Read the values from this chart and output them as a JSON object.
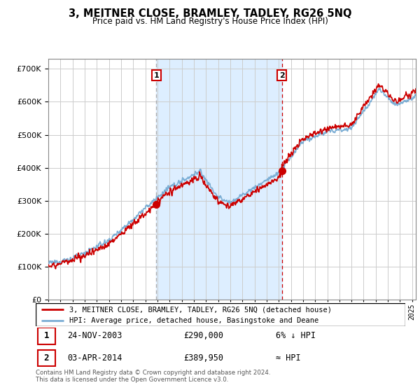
{
  "title": "3, MEITNER CLOSE, BRAMLEY, TADLEY, RG26 5NQ",
  "subtitle": "Price paid vs. HM Land Registry's House Price Index (HPI)",
  "ylim": [
    0,
    730000
  ],
  "xlim_start": 1995.0,
  "xlim_end": 2025.3,
  "legend_line1": "3, MEITNER CLOSE, BRAMLEY, TADLEY, RG26 5NQ (detached house)",
  "legend_line2": "HPI: Average price, detached house, Basingstoke and Deane",
  "sale1_date": "24-NOV-2003",
  "sale1_price": "£290,000",
  "sale1_note": "6% ↓ HPI",
  "sale2_date": "03-APR-2014",
  "sale2_price": "£389,950",
  "sale2_note": "≈ HPI",
  "footer": "Contains HM Land Registry data © Crown copyright and database right 2024.\nThis data is licensed under the Open Government Licence v3.0.",
  "sale1_x": 2003.9,
  "sale1_y": 290000,
  "sale2_x": 2014.25,
  "sale2_y": 389950,
  "hpi_color": "#7aadd4",
  "price_color": "#cc0000",
  "shade_color": "#ddeeff",
  "background_color": "#ffffff",
  "grid_color": "#cccccc"
}
